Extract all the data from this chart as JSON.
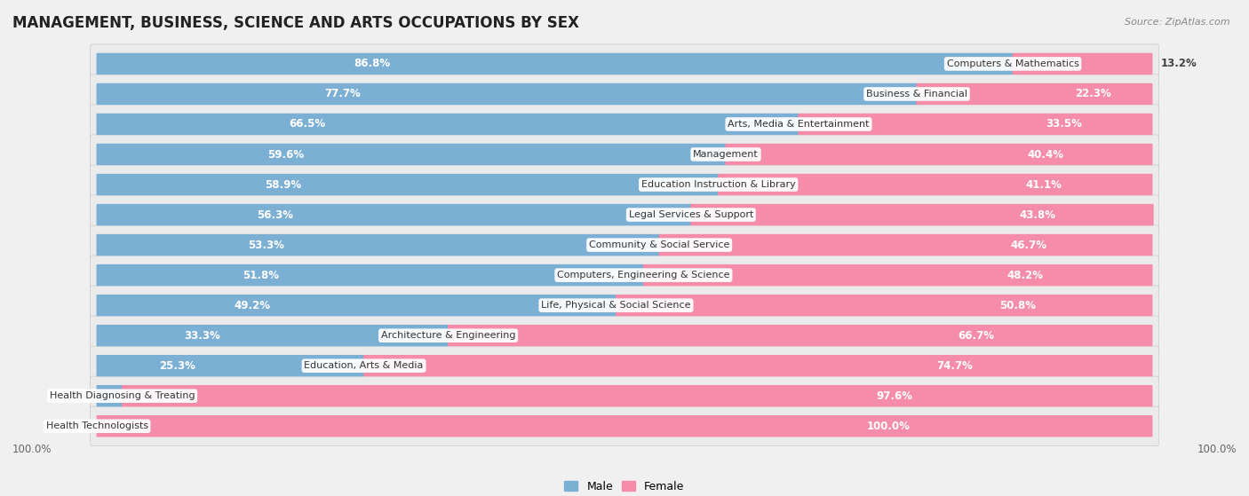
{
  "title": "MANAGEMENT, BUSINESS, SCIENCE AND ARTS OCCUPATIONS BY SEX",
  "source": "Source: ZipAtlas.com",
  "categories": [
    "Computers & Mathematics",
    "Business & Financial",
    "Arts, Media & Entertainment",
    "Management",
    "Education Instruction & Library",
    "Legal Services & Support",
    "Community & Social Service",
    "Computers, Engineering & Science",
    "Life, Physical & Social Science",
    "Architecture & Engineering",
    "Education, Arts & Media",
    "Health Diagnosing & Treating",
    "Health Technologists"
  ],
  "male_pct": [
    86.8,
    77.7,
    66.5,
    59.6,
    58.9,
    56.3,
    53.3,
    51.8,
    49.2,
    33.3,
    25.3,
    2.4,
    0.0
  ],
  "female_pct": [
    13.2,
    22.3,
    33.5,
    40.4,
    41.1,
    43.8,
    46.7,
    48.2,
    50.8,
    66.7,
    74.7,
    97.6,
    100.0
  ],
  "male_color": "#7bafd4",
  "female_color": "#f48caa",
  "background_color": "#f0f0f0",
  "row_bg_color": "#ffffff",
  "row_alt_color": "#e8e8e8",
  "legend_male": "Male",
  "legend_female": "Female",
  "title_fontsize": 12,
  "label_fontsize": 8.5,
  "category_fontsize": 8,
  "bar_height": 0.62,
  "bottom_labels": [
    "100.0%",
    "100.0%"
  ]
}
